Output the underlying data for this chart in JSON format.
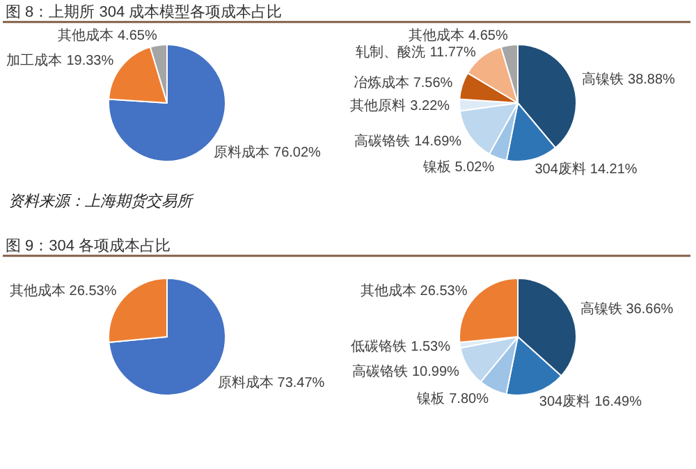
{
  "chart_data": [
    {
      "type": "pie",
      "title": "图 8：上期所 304 成本模型各项成本占比",
      "categories": [
        "原料成本",
        "加工成本",
        "其他成本"
      ],
      "values": [
        76.02,
        19.33,
        4.65
      ],
      "value_labels": [
        "76.02%",
        "19.33%",
        "4.65%"
      ],
      "colors": [
        "#4472c4",
        "#ed7d31",
        "#a5a5a5"
      ],
      "annotations": [
        "资料来源：上海期货交易所"
      ]
    },
    {
      "type": "pie",
      "categories": [
        "高镍铁",
        "304废料",
        "镍板",
        "高碳铬铁",
        "其他原料",
        "冶炼成本",
        "轧制、酸洗",
        "其他成本"
      ],
      "values": [
        38.88,
        14.21,
        5.02,
        14.69,
        3.22,
        7.56,
        11.77,
        4.65
      ],
      "value_labels": [
        "38.88%",
        "14.21%",
        "5.02%",
        "14.69%",
        "3.22%",
        "7.56%",
        "11.77%",
        "4.65%"
      ],
      "colors": [
        "#1f4e79",
        "#2e75b6",
        "#9dc3e6",
        "#bdd7ee",
        "#deebf7",
        "#c55a11",
        "#f4b183",
        "#a5a5a5"
      ]
    },
    {
      "type": "pie",
      "title": "图 9：304 各项成本占比",
      "categories": [
        "原料成本",
        "其他成本"
      ],
      "values": [
        73.47,
        26.53
      ],
      "value_labels": [
        "73.47%",
        "26.53%"
      ],
      "colors": [
        "#4472c4",
        "#ed7d31"
      ]
    },
    {
      "type": "pie",
      "categories": [
        "高镍铁",
        "304废料",
        "镍板",
        "高碳铬铁",
        "低碳铬铁",
        "其他成本"
      ],
      "values": [
        36.66,
        16.49,
        7.8,
        10.99,
        1.53,
        26.53
      ],
      "value_labels": [
        "36.66%",
        "16.49%",
        "7.80%",
        "10.99%",
        "1.53%",
        "26.53%"
      ],
      "colors": [
        "#1f4e79",
        "#2e75b6",
        "#9dc3e6",
        "#bdd7ee",
        "#deebf7",
        "#ed7d31"
      ]
    }
  ]
}
